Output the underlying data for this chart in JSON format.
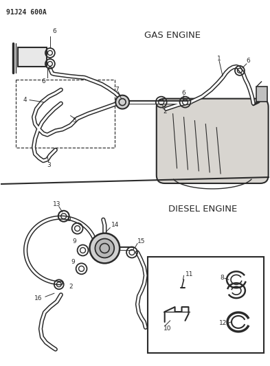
{
  "title": "91J24 600A",
  "gas_engine_label": "GAS ENGINE",
  "diesel_engine_label": "DIESEL ENGINE",
  "bg_color": "#ffffff",
  "line_color": "#2a2a2a",
  "fig_width": 3.93,
  "fig_height": 5.33,
  "dpi": 100
}
